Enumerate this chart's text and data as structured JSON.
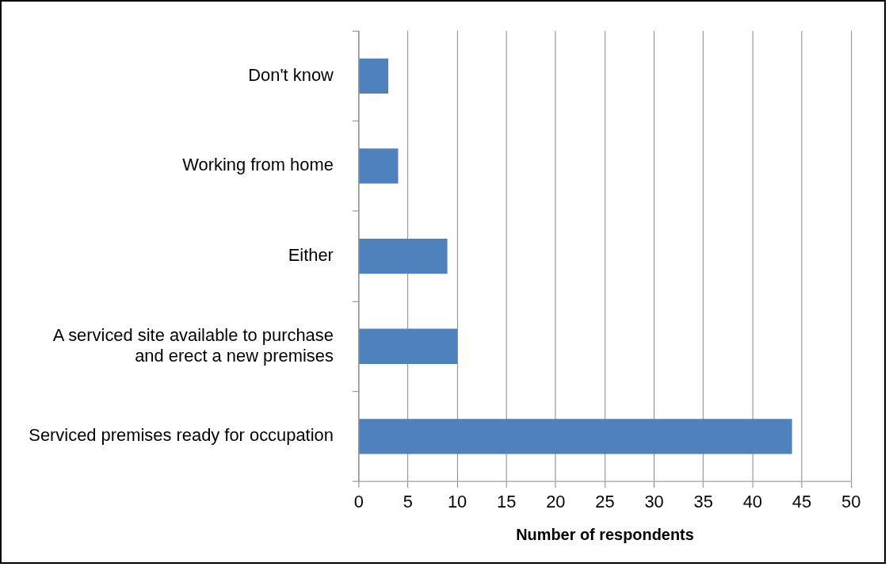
{
  "chart_data": {
    "type": "bar",
    "orientation": "horizontal",
    "xlabel": "Number of respondents",
    "categories": [
      "Don't know",
      "Working from home",
      "Either",
      "A serviced site available to purchase and erect a new premises",
      "Serviced premises ready for occupation"
    ],
    "values": [
      3,
      4,
      9,
      10,
      44
    ],
    "color": "#4f81bd",
    "xlim": [
      0,
      50
    ],
    "xticks": [
      0,
      5,
      10,
      15,
      20,
      25,
      30,
      35,
      40,
      45,
      50
    ],
    "grid": "x",
    "legend": false
  }
}
